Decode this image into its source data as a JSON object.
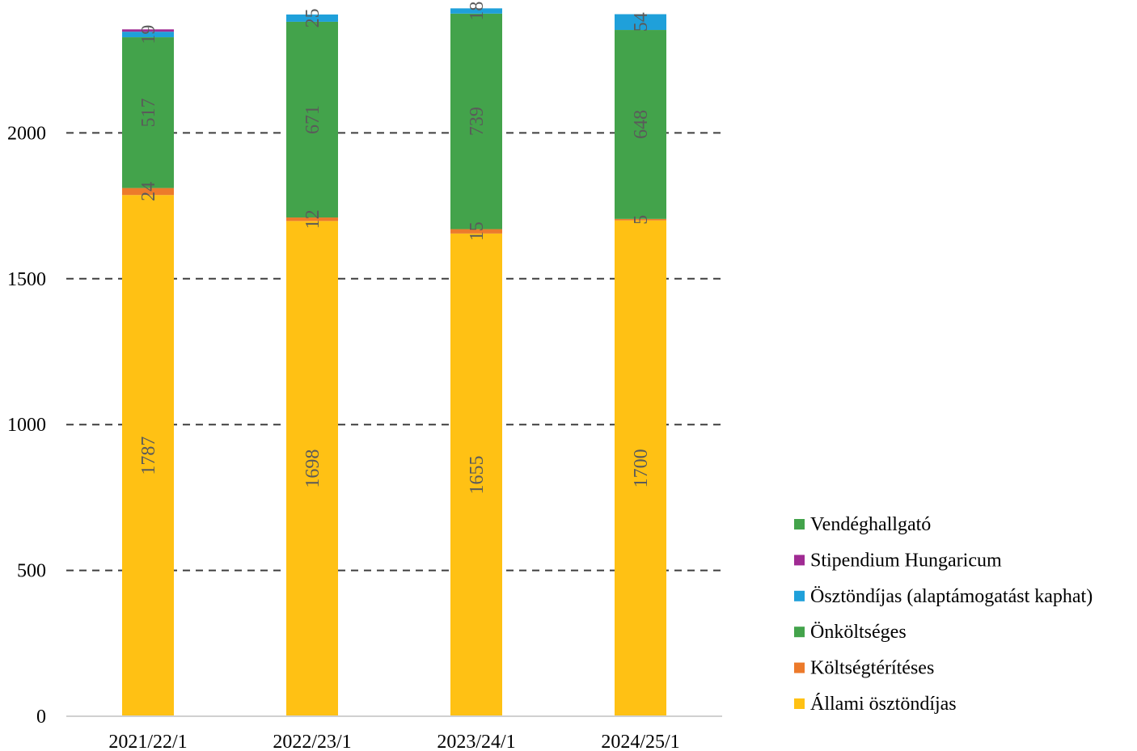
{
  "chart_data": {
    "type": "bar",
    "stacked": true,
    "categories": [
      "2021/22/1",
      "2022/23/1",
      "2023/24/1",
      "2024/25/1"
    ],
    "series": [
      {
        "name": "Állami ösztöndíjas",
        "color": "#FFC114",
        "values": [
          1787,
          1698,
          1655,
          1700
        ]
      },
      {
        "name": "Költségtérítéses",
        "color": "#EC7A2B",
        "values": [
          24,
          12,
          15,
          5
        ]
      },
      {
        "name": "Önköltséges",
        "color": "#43A34B",
        "values": [
          517,
          671,
          739,
          648
        ]
      },
      {
        "name": "Ösztöndíjas (alaptámogatást kaphat)",
        "color": "#1FA0DA",
        "values": [
          19,
          25,
          18,
          54
        ]
      },
      {
        "name": "Stipendium Hungaricum",
        "color": "#A02B93",
        "values": [
          8,
          0,
          0,
          0
        ]
      },
      {
        "name": "Vendéghallgató",
        "color": "#43A34B",
        "values": [
          0,
          0,
          0,
          0
        ]
      }
    ],
    "data_labels": [
      [
        "1787",
        "24",
        "517",
        "19"
      ],
      [
        "1698",
        "12",
        "671",
        "25"
      ],
      [
        "1655",
        "15",
        "739",
        "18"
      ],
      [
        "1700",
        "5",
        "648",
        "54"
      ]
    ],
    "yticks": [
      0,
      500,
      1000,
      1500,
      2000
    ],
    "ylim": [
      0,
      2450
    ],
    "grid": true,
    "legend_position": "right",
    "legend_order": [
      "Vendéghallgató",
      "Stipendium Hungaricum",
      "Ösztöndíjas (alaptámogatást kaphat)",
      "Önköltséges",
      "Költségtérítéses",
      "Állami ösztöndíjas"
    ],
    "title": "",
    "xlabel": "",
    "ylabel": ""
  }
}
